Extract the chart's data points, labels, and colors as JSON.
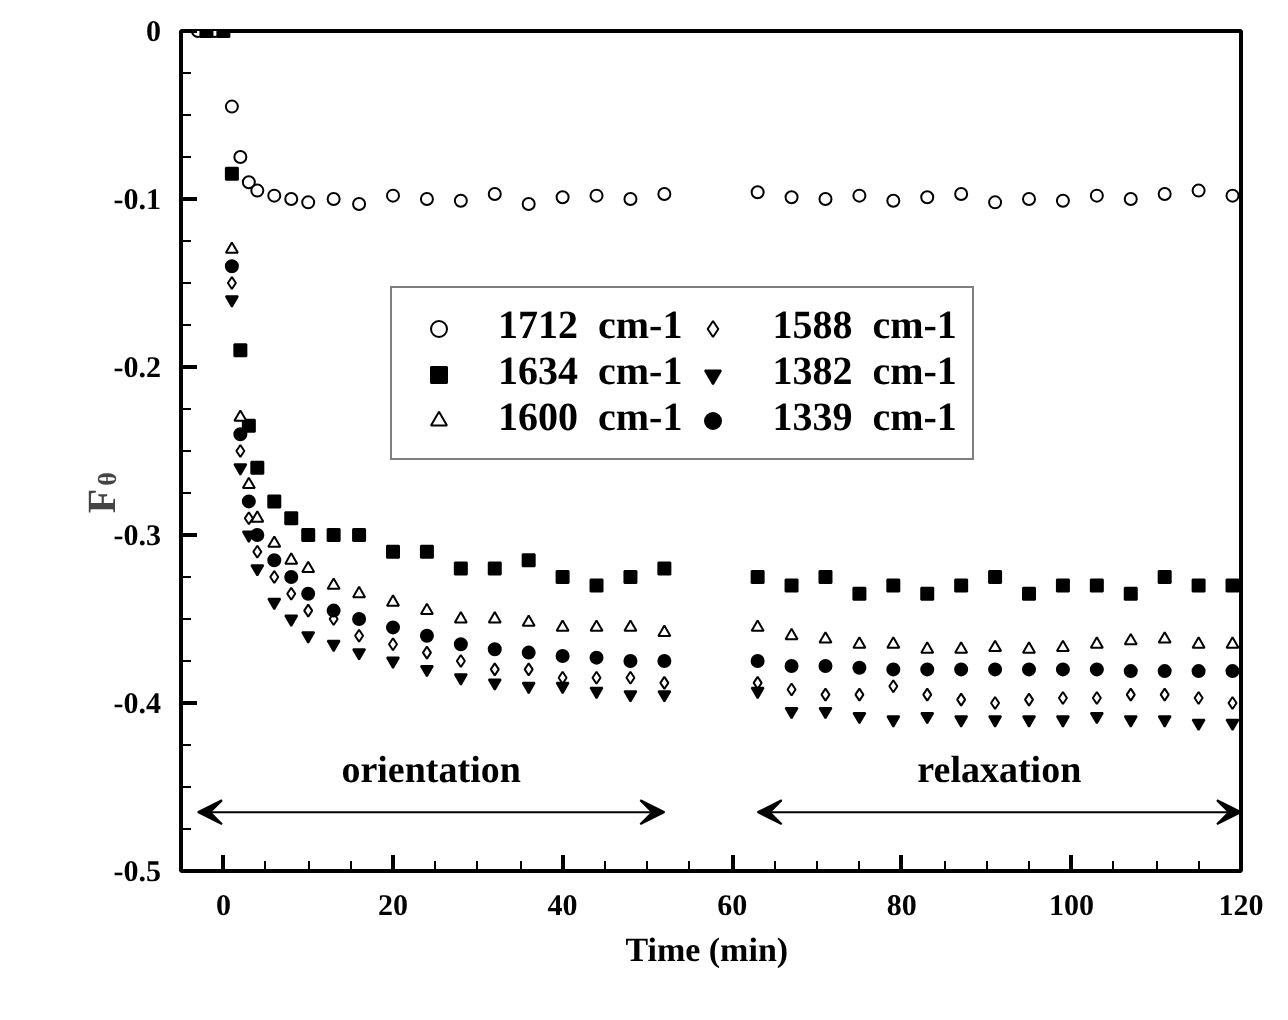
{
  "chart_data": {
    "type": "scatter",
    "xlabel": "Time  (min)",
    "ylabel": "F$_{θ}$",
    "x": [
      -3,
      -2,
      -1,
      0,
      1,
      2,
      3,
      4,
      6,
      8,
      10,
      13,
      16,
      20,
      24,
      28,
      32,
      36,
      40,
      44,
      48,
      52,
      63,
      67,
      71,
      75,
      79,
      83,
      87,
      91,
      95,
      99,
      103,
      107,
      111,
      115,
      119
    ],
    "series": [
      {
        "name": "1712  cm-1",
        "color": "#ffffff",
        "marker": "circle",
        "values": [
          0,
          null,
          0,
          null,
          -0.045,
          -0.075,
          -0.09,
          -0.095,
          -0.098,
          -0.1,
          -0.102,
          -0.1,
          -0.103,
          -0.098,
          -0.1,
          -0.101,
          -0.097,
          -0.103,
          -0.099,
          -0.098,
          -0.1,
          -0.097,
          -0.096,
          -0.099,
          -0.1,
          -0.098,
          -0.101,
          -0.099,
          -0.097,
          -0.102,
          -0.1,
          -0.101,
          -0.098,
          -0.1,
          -0.097,
          -0.095,
          -0.098
        ]
      },
      {
        "name": "1634  cm-1",
        "color": "#000000",
        "marker": "square",
        "values": [
          null,
          0,
          null,
          0,
          -0.085,
          -0.19,
          -0.235,
          -0.26,
          -0.28,
          -0.29,
          -0.3,
          -0.3,
          -0.3,
          -0.31,
          -0.31,
          -0.32,
          -0.32,
          -0.315,
          -0.325,
          -0.33,
          -0.325,
          -0.32,
          -0.325,
          -0.33,
          -0.325,
          -0.335,
          -0.33,
          -0.335,
          -0.33,
          -0.325,
          -0.335,
          -0.33,
          -0.33,
          -0.335,
          -0.325,
          -0.33,
          -0.33
        ]
      },
      {
        "name": "1600  cm-1",
        "color": "#ffffff",
        "marker": "triangle",
        "values": [
          null,
          null,
          null,
          null,
          -0.13,
          -0.23,
          -0.27,
          -0.29,
          -0.305,
          -0.315,
          -0.32,
          -0.33,
          -0.335,
          -0.34,
          -0.345,
          -0.35,
          -0.35,
          -0.352,
          -0.355,
          -0.355,
          -0.355,
          -0.358,
          -0.355,
          -0.36,
          -0.362,
          -0.365,
          -0.365,
          -0.368,
          -0.368,
          -0.367,
          -0.368,
          -0.367,
          -0.365,
          -0.363,
          -0.362,
          -0.365,
          -0.365
        ]
      },
      {
        "name": "1588  cm-1",
        "color": "#ffffff",
        "marker": "diamond",
        "values": [
          null,
          null,
          null,
          null,
          -0.15,
          -0.25,
          -0.29,
          -0.31,
          -0.325,
          -0.335,
          -0.345,
          -0.35,
          -0.36,
          -0.365,
          -0.37,
          -0.375,
          -0.38,
          -0.38,
          -0.385,
          -0.385,
          -0.385,
          -0.388,
          -0.388,
          -0.392,
          -0.395,
          -0.395,
          -0.39,
          -0.395,
          -0.398,
          -0.4,
          -0.398,
          -0.397,
          -0.397,
          -0.395,
          -0.395,
          -0.397,
          -0.4
        ]
      },
      {
        "name": "1382  cm-1",
        "color": "#000000",
        "marker": "triangle",
        "values": [
          null,
          null,
          null,
          null,
          -0.16,
          -0.26,
          -0.3,
          -0.32,
          -0.34,
          -0.35,
          -0.36,
          -0.365,
          -0.37,
          -0.375,
          -0.38,
          -0.385,
          -0.388,
          -0.39,
          -0.39,
          -0.393,
          -0.395,
          -0.395,
          -0.393,
          -0.405,
          -0.405,
          -0.408,
          -0.41,
          -0.408,
          -0.41,
          -0.41,
          -0.41,
          -0.41,
          -0.408,
          -0.41,
          -0.41,
          -0.412,
          -0.412
        ]
      },
      {
        "name": "1339  cm-1",
        "color": "#000000",
        "marker": "circle",
        "values": [
          null,
          null,
          null,
          null,
          -0.14,
          -0.24,
          -0.28,
          -0.3,
          -0.315,
          -0.325,
          -0.335,
          -0.345,
          -0.35,
          -0.355,
          -0.36,
          -0.365,
          -0.368,
          -0.37,
          -0.372,
          -0.373,
          -0.375,
          -0.375,
          -0.375,
          -0.378,
          -0.378,
          -0.379,
          -0.38,
          -0.38,
          -0.38,
          -0.38,
          -0.38,
          -0.38,
          -0.38,
          -0.381,
          -0.381,
          -0.381,
          -0.381
        ]
      }
    ],
    "annotations": [
      "orientation",
      "relaxation"
    ],
    "xlim": [
      -5,
      120
    ],
    "ylim": [
      -0.5,
      0
    ],
    "xticks": [
      0,
      20,
      40,
      60,
      80,
      100,
      120
    ],
    "yticks": [
      -0.5,
      -0.4,
      -0.3,
      -0.2,
      -0.1,
      0
    ],
    "grid": false,
    "legend": "right"
  }
}
